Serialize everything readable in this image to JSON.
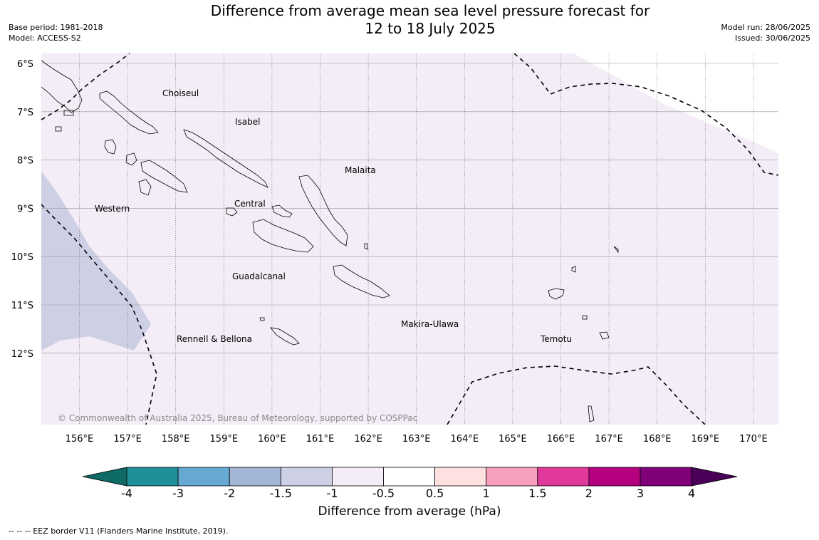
{
  "title_line1": "Difference from average mean sea level pressure forecast for",
  "title_line2": "12 to 18 July 2025",
  "base_period": "Base period: 1981-2018",
  "model": "Model: ACCESS-S2",
  "model_run": "Model run: 28/06/2025",
  "issued": "Issued: 30/06/2025",
  "copyright": "© Commonwealth of Australia 2025, Bureau of Meteorology, supported by COSPPac",
  "footnote": "-- -- -- EEZ border V11 (Flanders Marine Institute, 2019).",
  "colorbar": {
    "title": "Difference from average (hPa)",
    "labels": [
      "-4",
      "-3",
      "-2",
      "-1.5",
      "-1",
      "-0.5",
      "0.5",
      "1",
      "1.5",
      "2",
      "3",
      "4"
    ],
    "colors": [
      "#1f8f9a",
      "#66aad4",
      "#a3b6d6",
      "#cdd0e5",
      "#f4ecf6",
      "#ffffff",
      "#fde0e0",
      "#f7a0bd",
      "#e0399b",
      "#b5007f",
      "#80007a"
    ],
    "low_extend_color": "#0d6a64",
    "high_extend_color": "#4a0057"
  },
  "map": {
    "lat_labels": [
      "6°S",
      "7°S",
      "8°S",
      "9°S",
      "10°S",
      "11°S",
      "12°S"
    ],
    "lon_labels": [
      "156°E",
      "157°E",
      "158°E",
      "159°E",
      "160°E",
      "161°E",
      "162°E",
      "163°E",
      "164°E",
      "165°E",
      "166°E",
      "167°E",
      "168°E",
      "169°E",
      "170°E"
    ],
    "region_labels": {
      "choiseul": "Choiseul",
      "isabel": "Isabel",
      "malaita": "Malaita",
      "western": "Western",
      "central": "Central",
      "guadalcanal": "Guadalcanal",
      "makira": "Makira-Ulawa",
      "rennell": "Rennell & Bellona",
      "temotu": "Temotu"
    },
    "background_color": "#f4ecf6",
    "negative_region_color": "#cdd0e5"
  }
}
